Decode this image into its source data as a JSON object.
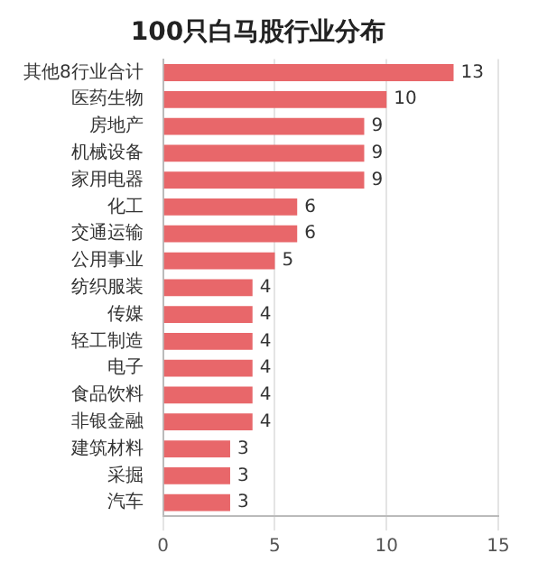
{
  "chart_data": {
    "type": "bar",
    "orientation": "horizontal",
    "title": "100只白马股行业分布",
    "categories": [
      "其他8行业合计",
      "医药生物",
      "房地产",
      "机械设备",
      "家用电器",
      "化工",
      "交通运输",
      "公用事业",
      "纺织服装",
      "传媒",
      "轻工制造",
      "电子",
      "食品饮料",
      "非银金融",
      "建筑材料",
      "采掘",
      "汽车"
    ],
    "values": [
      13,
      10,
      9,
      9,
      9,
      6,
      6,
      5,
      4,
      4,
      4,
      4,
      4,
      4,
      3,
      3,
      3
    ],
    "color": "#e8676a",
    "xlim": [
      0,
      15
    ],
    "xticks": [
      0,
      5,
      10,
      15
    ],
    "grid": "x",
    "data_labels": true
  }
}
